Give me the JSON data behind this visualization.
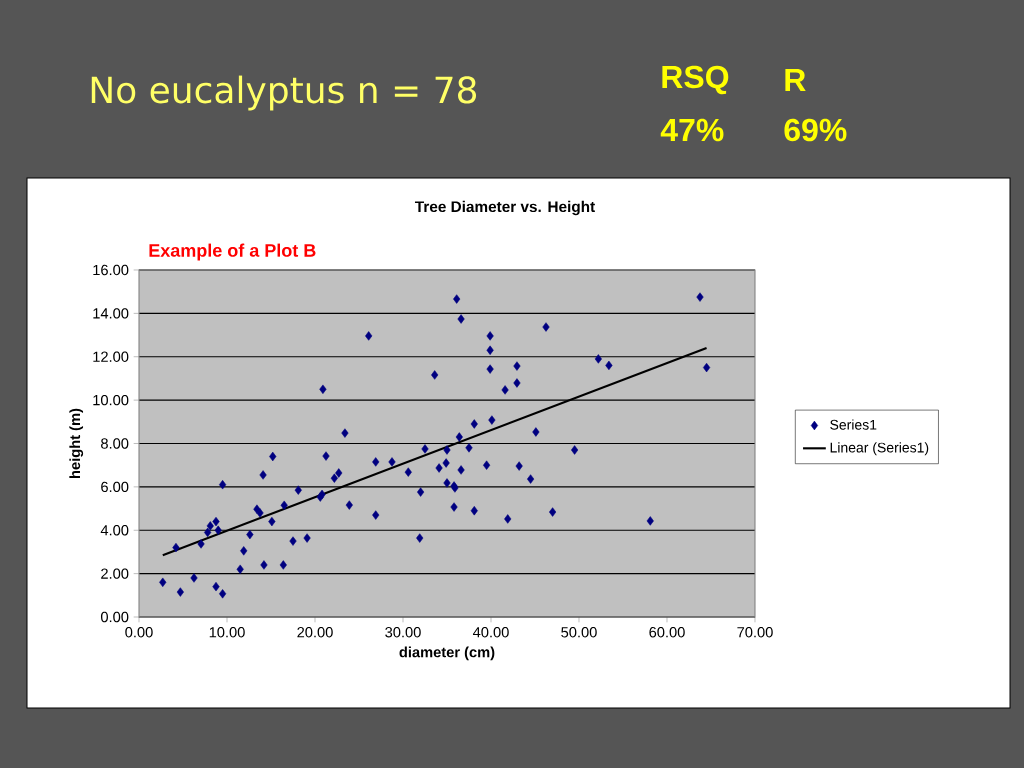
{
  "chart_data": {
    "type": "scatter",
    "title": "Tree Diameter vs. Height",
    "xlabel": "diameter (cm)",
    "ylabel": "height (m)",
    "annotations": [
      "No eucalyptus   n = 78",
      "RSQ",
      "R",
      "47%",
      "69%",
      "Example of a Plot B"
    ],
    "xlim": [
      0,
      70
    ],
    "ylim": [
      0,
      16
    ],
    "xticks": [
      {
        "value": 0,
        "label": "0.00"
      },
      {
        "value": 10,
        "label": "10.00"
      },
      {
        "value": 20,
        "label": "20.00"
      },
      {
        "value": 30,
        "label": "30.00"
      },
      {
        "value": 40,
        "label": "40.00"
      },
      {
        "value": 50,
        "label": "50.00"
      },
      {
        "value": 60,
        "label": "60.00"
      },
      {
        "value": 70,
        "label": "70.00"
      }
    ],
    "yticks": [
      {
        "value": 0,
        "label": "0.00"
      },
      {
        "value": 2,
        "label": "2.00"
      },
      {
        "value": 4,
        "label": "4.00"
      },
      {
        "value": 6,
        "label": "6.00"
      },
      {
        "value": 8,
        "label": "8.00"
      },
      {
        "value": 10,
        "label": "10.00"
      },
      {
        "value": 12,
        "label": "12.00"
      },
      {
        "value": 14,
        "label": "14.00"
      },
      {
        "value": 16,
        "label": "16.00"
      }
    ],
    "grid": "y",
    "legend": "right",
    "series": [
      {
        "name": "Series1",
        "marker": "diamond",
        "color": "#000080",
        "x": [
          2.7,
          4.2,
          4.7,
          6.25,
          7.05,
          7.8,
          8.1,
          8.75,
          9.0,
          8.75,
          9.5,
          9.5,
          11.5,
          11.9,
          12.6,
          13.4,
          13.75,
          14.2,
          14.1,
          15.2,
          15.1,
          16.5,
          16.4,
          17.5,
          18.1,
          19.1,
          20.6,
          20.8,
          20.9,
          21.25,
          22.2,
          22.7,
          23.4,
          23.9,
          26.1,
          26.9,
          26.9,
          28.75,
          30.6,
          32.0,
          31.9,
          32.5,
          33.6,
          34.1,
          34.9,
          35.0,
          35.0,
          36.1,
          36.6,
          39.9,
          39.9,
          39.9,
          42.95,
          42.95,
          41.6,
          46.25,
          38.1,
          40.1,
          45.1,
          36.4,
          37.5,
          36.6,
          39.5,
          43.2,
          44.5,
          49.5,
          35.8,
          35.9,
          35.8,
          38.1,
          41.9,
          47.0,
          52.2,
          53.4,
          63.75,
          64.5,
          58.1
        ],
        "values": [
          1.6,
          3.2,
          1.15,
          1.8,
          3.37,
          3.9,
          4.2,
          4.4,
          4.0,
          1.4,
          1.07,
          6.1,
          2.2,
          3.05,
          3.8,
          4.97,
          4.8,
          2.4,
          6.55,
          7.4,
          4.4,
          5.15,
          2.4,
          3.5,
          5.85,
          3.64,
          5.53,
          5.65,
          10.5,
          7.42,
          6.4,
          6.64,
          8.48,
          5.16,
          12.96,
          7.15,
          4.7,
          7.15,
          6.68,
          5.76,
          3.64,
          7.75,
          11.16,
          6.87,
          7.1,
          6.18,
          7.7,
          14.66,
          13.74,
          12.96,
          12.3,
          11.43,
          11.57,
          10.79,
          10.47,
          13.37,
          8.9,
          9.08,
          8.53,
          8.3,
          7.8,
          6.78,
          7.0,
          6.96,
          6.36,
          7.7,
          6.04,
          5.95,
          5.07,
          4.9,
          4.52,
          4.84,
          11.9,
          11.6,
          14.75,
          11.5,
          4.43
        ]
      },
      {
        "name": "Linear (Series1)",
        "type": "line",
        "marker": "none",
        "line_style": "solid",
        "color": "#000000",
        "x": [
          2.7,
          64.5
        ],
        "values": [
          2.85,
          12.4
        ]
      }
    ]
  }
}
